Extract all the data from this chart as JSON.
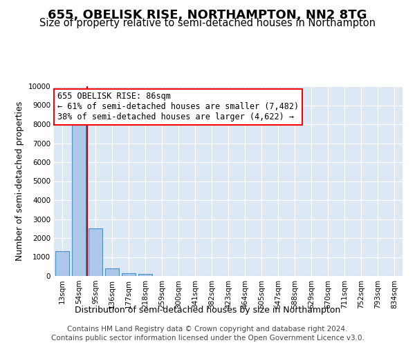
{
  "title": "655, OBELISK RISE, NORTHAMPTON, NN2 8TG",
  "subtitle": "Size of property relative to semi-detached houses in Northampton",
  "xlabel_bottom": "Distribution of semi-detached houses by size in Northampton",
  "ylabel": "Number of semi-detached properties",
  "footer1": "Contains HM Land Registry data © Crown copyright and database right 2024.",
  "footer2": "Contains public sector information licensed under the Open Government Licence v3.0.",
  "bin_labels": [
    "13sqm",
    "54sqm",
    "95sqm",
    "136sqm",
    "177sqm",
    "218sqm",
    "259sqm",
    "300sqm",
    "341sqm",
    "382sqm",
    "423sqm",
    "464sqm",
    "505sqm",
    "547sqm",
    "588sqm",
    "629sqm",
    "670sqm",
    "711sqm",
    "752sqm",
    "793sqm",
    "834sqm"
  ],
  "bar_values": [
    1300,
    8000,
    2500,
    400,
    150,
    100,
    0,
    0,
    0,
    0,
    0,
    0,
    0,
    0,
    0,
    0,
    0,
    0,
    0,
    0,
    0
  ],
  "bar_color": "#aec6e8",
  "bar_edge_color": "#4a90c4",
  "bar_edge_width": 0.8,
  "red_line_color": "#cc0000",
  "ylim": [
    0,
    10000
  ],
  "yticks": [
    0,
    1000,
    2000,
    3000,
    4000,
    5000,
    6000,
    7000,
    8000,
    9000,
    10000
  ],
  "annotation_line1": "655 OBELISK RISE: 86sqm",
  "annotation_line2": "← 61% of semi-detached houses are smaller (7,482)",
  "annotation_line3": "38% of semi-detached houses are larger (4,622) →",
  "bg_color": "#ffffff",
  "plot_bg_color": "#dde8f5",
  "grid_color": "#ffffff",
  "title_fontsize": 13,
  "subtitle_fontsize": 10.5,
  "axis_label_fontsize": 9,
  "tick_fontsize": 7.5,
  "annotation_fontsize": 8.5,
  "footer_fontsize": 7.5
}
